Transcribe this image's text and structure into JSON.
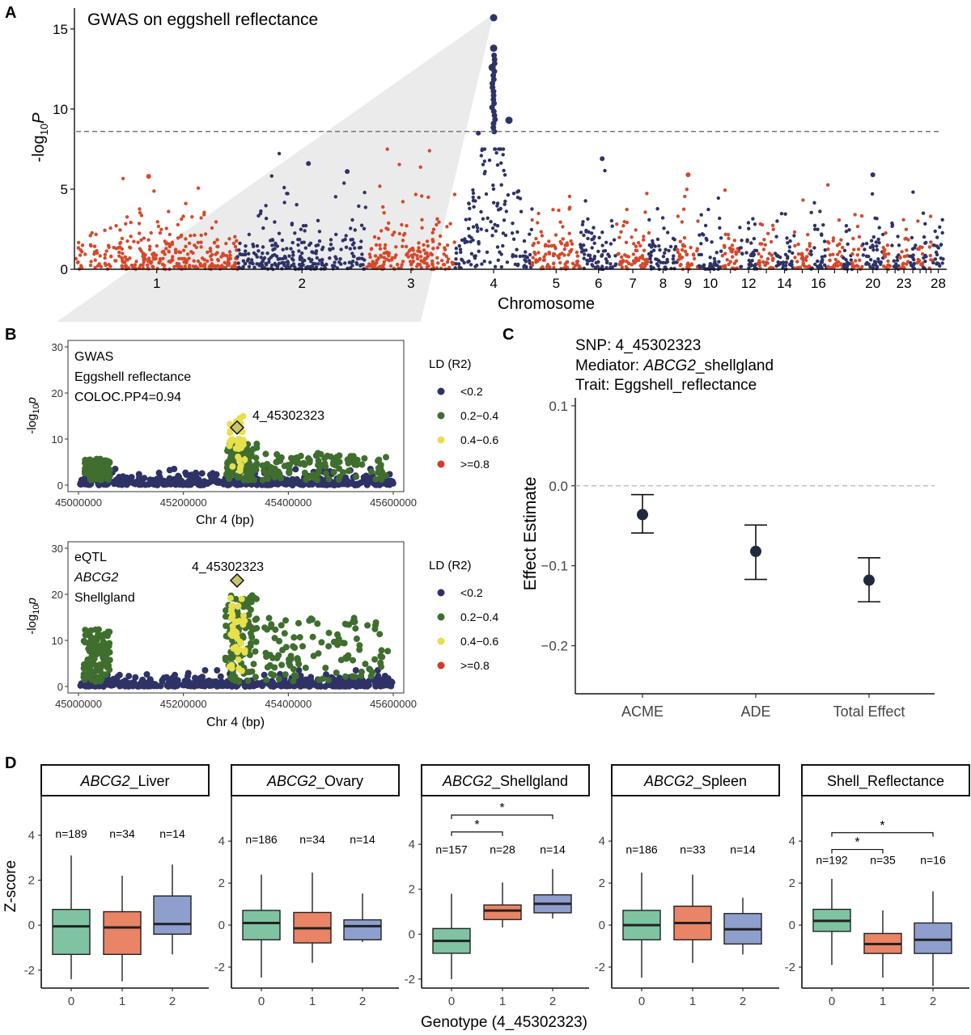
{
  "panel_letters": [
    "A",
    "B",
    "C",
    "D"
  ],
  "colors": {
    "navy": "#2e3266",
    "red": "#d4492b",
    "green": "#3f6e2f",
    "yellow": "#e7df4c",
    "ld_red": "#d33a2c",
    "box_green": "#7fc3a3",
    "box_orange": "#e98466",
    "box_blue": "#8e9fce",
    "threshold": "#777777",
    "zoom_fill": "#ebebeb"
  },
  "chart_data": [
    {
      "id": "A",
      "type": "scatter",
      "title": "GWAS on eggshell reflectance",
      "xlabel": "Chromosome",
      "ylabel_base": "-log",
      "ylabel_sub": "10",
      "ylabel_var": "P",
      "ylim": [
        0,
        16
      ],
      "yticks": [
        0,
        5,
        10,
        15
      ],
      "threshold": 8.6,
      "chromosomes": [
        {
          "label": "1",
          "lo": 0,
          "hi": 200
        },
        {
          "label": "2",
          "lo": 200,
          "hi": 360
        },
        {
          "label": "3",
          "lo": 360,
          "hi": 470
        },
        {
          "label": "4",
          "lo": 470,
          "hi": 565
        },
        {
          "label": "5",
          "lo": 565,
          "hi": 625
        },
        {
          "label": "6",
          "lo": 625,
          "hi": 670
        },
        {
          "label": "7",
          "lo": 670,
          "hi": 710
        },
        {
          "label": "8",
          "lo": 710,
          "hi": 745
        },
        {
          "label": "9",
          "lo": 745,
          "hi": 772
        },
        {
          "label": "10",
          "lo": 772,
          "hi": 800
        },
        {
          "label": "",
          "lo": 800,
          "hi": 822
        },
        {
          "label": "12",
          "lo": 822,
          "hi": 845
        },
        {
          "label": "",
          "lo": 845,
          "hi": 866
        },
        {
          "label": "14",
          "lo": 866,
          "hi": 890
        },
        {
          "label": "",
          "lo": 890,
          "hi": 910
        },
        {
          "label": "16",
          "lo": 910,
          "hi": 930
        },
        {
          "label": "",
          "lo": 930,
          "hi": 950
        },
        {
          "label": "",
          "lo": 950,
          "hi": 962
        },
        {
          "label": "",
          "lo": 962,
          "hi": 975
        },
        {
          "label": "20",
          "lo": 975,
          "hi": 1000
        },
        {
          "label": "",
          "lo": 1000,
          "hi": 1010
        },
        {
          "label": "",
          "lo": 1010,
          "hi": 1020
        },
        {
          "label": "23",
          "lo": 1020,
          "hi": 1032
        },
        {
          "label": "",
          "lo": 1032,
          "hi": 1042
        },
        {
          "label": "",
          "lo": 1042,
          "hi": 1050
        },
        {
          "label": "",
          "lo": 1050,
          "hi": 1057
        },
        {
          "label": "",
          "lo": 1057,
          "hi": 1062
        },
        {
          "label": "28",
          "lo": 1062,
          "hi": 1075
        }
      ],
      "top_snps": [
        {
          "chr": "4",
          "logp": 15.7
        },
        {
          "chr": "4",
          "logp": 13.8
        },
        {
          "chr": "4",
          "logp": 12.6
        },
        {
          "chr": "4",
          "logp": 9.3
        },
        {
          "chr": "4",
          "logp": 8.5
        },
        {
          "chr": "2",
          "logp": 6.6
        },
        {
          "chr": "2",
          "logp": 6.1
        },
        {
          "chr": "6",
          "logp": 6.9
        },
        {
          "chr": "9",
          "logp": 5.9
        },
        {
          "chr": "20",
          "logp": 5.9
        },
        {
          "chr": "1",
          "logp": 5.8
        }
      ]
    },
    {
      "id": "B1",
      "type": "scatter",
      "label_lines": [
        "GWAS",
        "Eggshell reflectance",
        "COLOC.PP4=0.94"
      ],
      "lead_snp": "4_45302323",
      "lead_pos": 45302323,
      "lead_logp": 12.5,
      "xlabel": "Chr 4 (bp)",
      "ylabel_base": "-log",
      "ylabel_sub": "10",
      "ylabel_var": "p",
      "xlim": [
        45000000,
        45600000
      ],
      "xticks": [
        45000000,
        45200000,
        45400000,
        45600000
      ],
      "ylim": [
        0,
        30
      ],
      "yticks": [
        0,
        10,
        20,
        30
      ],
      "green_max": 8,
      "yellow_max": 15,
      "legend_title": "LD (R2)",
      "legend": [
        "<0.2",
        "0.2−0.4",
        "0.4−0.6",
        ">=0.8"
      ]
    },
    {
      "id": "B2",
      "type": "scatter",
      "label_lines": [
        "eQTL",
        "ABCG2",
        "Shellgland"
      ],
      "lead_snp": "4_45302323",
      "lead_pos": 45302323,
      "lead_logp": 23,
      "xlabel": "Chr 4 (bp)",
      "ylabel_base": "-log",
      "ylabel_sub": "10",
      "ylabel_var": "p",
      "xlim": [
        45000000,
        45600000
      ],
      "xticks": [
        45000000,
        45200000,
        45400000,
        45600000
      ],
      "ylim": [
        0,
        30
      ],
      "yticks": [
        0,
        10,
        20,
        30
      ],
      "green_max": 19,
      "yellow_max": 20,
      "legend_title": "LD (R2)",
      "legend": [
        "<0.2",
        "0.2−0.4",
        "0.4−0.6",
        ">=0.8"
      ]
    },
    {
      "id": "C",
      "type": "scatter",
      "title_lines": [
        {
          "pre": "SNP: 4_45302323",
          "ital": "",
          "post": ""
        },
        {
          "pre": "Mediator: ",
          "ital": "ABCG2",
          "post": "_shellgland"
        },
        {
          "pre": "Trait: Eggshell_reflectance",
          "ital": "",
          "post": ""
        }
      ],
      "ylabel": "Effect Estimate",
      "ylim": [
        -0.26,
        0.11
      ],
      "yticks": [
        -0.2,
        -0.1,
        0.0,
        0.1
      ],
      "ytick_labels": [
        "−0.2",
        "−0.1",
        "0.0",
        "0.1"
      ],
      "categories": [
        "ACME",
        "ADE",
        "Total Effect"
      ],
      "estimates": [
        -0.036,
        -0.082,
        -0.118
      ],
      "lower": [
        -0.059,
        -0.117,
        -0.145
      ],
      "upper": [
        -0.011,
        -0.049,
        -0.09
      ]
    },
    {
      "id": "D",
      "type": "box",
      "ylabel": "Z-score",
      "xlabel": "Genotype (4_45302323)",
      "categories": [
        "0",
        "1",
        "2"
      ],
      "yticks": [
        -2,
        0,
        2,
        4
      ],
      "panels": [
        {
          "title_ital": "ABCG2",
          "title_rest": "_Liver",
          "ylim": [
            -2.8,
            5.8
          ],
          "n": [
            "n=189",
            "n=34",
            "n=14"
          ],
          "n_y": 3.9,
          "boxes": [
            [
              -2.4,
              -1.3,
              -0.05,
              0.7,
              3.1
            ],
            [
              -2.5,
              -1.3,
              -0.1,
              0.6,
              2.2
            ],
            [
              -1.3,
              -0.4,
              0.05,
              1.3,
              2.7
            ]
          ],
          "sig": []
        },
        {
          "title_ital": "ABCG2",
          "title_rest": "_Ovary",
          "ylim": [
            -3.0,
            6.2
          ],
          "n": [
            "n=186",
            "n=34",
            "n=14"
          ],
          "n_y": 3.9,
          "boxes": [
            [
              -2.5,
              -0.7,
              0.1,
              0.7,
              2.4
            ],
            [
              -1.8,
              -0.85,
              -0.15,
              0.6,
              2.5
            ],
            [
              -0.8,
              -0.7,
              -0.05,
              0.25,
              1.5
            ]
          ],
          "sig": []
        },
        {
          "title_ital": "ABCG2",
          "title_rest": "_Shellgland",
          "ylim": [
            -2.4,
            6.2
          ],
          "n": [
            "n=157",
            "n=28",
            "n=14"
          ],
          "n_y": 3.6,
          "boxes": [
            [
              -2.0,
              -0.85,
              -0.3,
              0.25,
              1.8
            ],
            [
              0.3,
              0.65,
              1.05,
              1.3,
              2.3
            ],
            [
              0.7,
              0.95,
              1.35,
              1.75,
              2.9
            ]
          ],
          "sig": [
            {
              "from": 0,
              "to": 1,
              "y": 4.55,
              "label": "*"
            },
            {
              "from": 0,
              "to": 2,
              "y": 5.3,
              "label": "*"
            }
          ]
        },
        {
          "title_ital": "ABCG2",
          "title_rest": "_Spleen",
          "ylim": [
            -3.0,
            6.2
          ],
          "n": [
            "n=186",
            "n=33",
            "n=14"
          ],
          "n_y": 3.4,
          "boxes": [
            [
              -2.5,
              -0.7,
              0.0,
              0.7,
              2.5
            ],
            [
              -1.8,
              -0.7,
              0.1,
              0.9,
              2.4
            ],
            [
              -1.4,
              -0.9,
              -0.2,
              0.55,
              1.3
            ]
          ],
          "sig": []
        },
        {
          "title_ital": "",
          "title_rest": "Shell_Reflectance",
          "ylim": [
            -3.0,
            6.2
          ],
          "n": [
            "n=192",
            "n=35",
            "n=16"
          ],
          "n_y": 2.9,
          "boxes": [
            [
              -1.9,
              -0.3,
              0.2,
              0.75,
              2.2
            ],
            [
              -2.5,
              -1.35,
              -0.9,
              -0.4,
              0.7
            ],
            [
              -2.9,
              -1.35,
              -0.7,
              0.1,
              1.6
            ]
          ],
          "sig": [
            {
              "from": 0,
              "to": 1,
              "y": 3.6,
              "label": "*"
            },
            {
              "from": 0,
              "to": 2,
              "y": 4.4,
              "label": "*"
            }
          ]
        }
      ]
    }
  ]
}
